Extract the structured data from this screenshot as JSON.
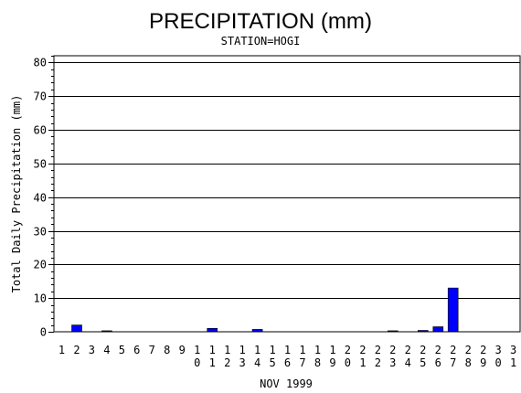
{
  "chart_data": {
    "type": "bar",
    "title": "PRECIPITATION (mm)",
    "subtitle": "STATION=HOGI",
    "xlabel": "NOV 1999",
    "ylabel": "Total Daily Precipitation (mm)",
    "ylim": [
      0,
      82
    ],
    "yticks": [
      0,
      10,
      20,
      30,
      40,
      50,
      60,
      70,
      80
    ],
    "grid": true,
    "categories": [
      "1",
      "2",
      "3",
      "4",
      "5",
      "6",
      "7",
      "8",
      "9",
      "10",
      "11",
      "12",
      "13",
      "14",
      "15",
      "16",
      "17",
      "18",
      "19",
      "20",
      "21",
      "22",
      "23",
      "24",
      "25",
      "26",
      "27",
      "28",
      "29",
      "30",
      "31"
    ],
    "values": [
      0,
      2,
      0,
      0.3,
      0,
      0,
      0,
      0,
      0,
      0,
      1,
      0,
      0,
      0.7,
      0,
      0,
      0,
      0,
      0,
      0,
      0,
      0,
      0.3,
      0,
      0.4,
      1.5,
      13,
      0,
      0,
      0,
      0
    ],
    "bar_color": "#0000ff"
  }
}
